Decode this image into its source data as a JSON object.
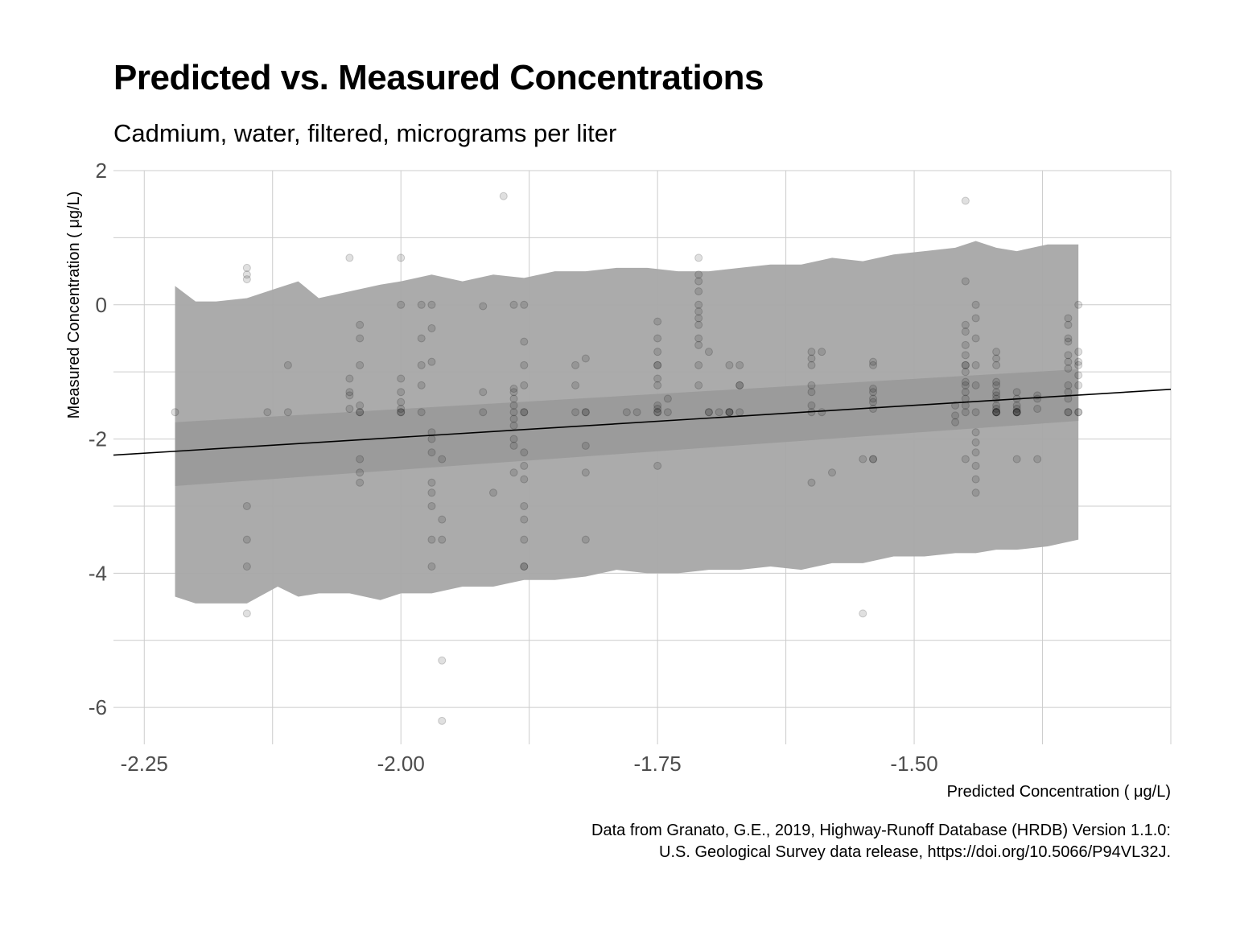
{
  "chart_data": {
    "type": "scatter",
    "title": "Predicted vs. Measured Concentrations",
    "subtitle": "Cadmium, water, filtered, micrograms per liter",
    "xlabel": "Predicted Concentration ( μg/L)",
    "ylabel": "Measured Concentration ( μg/L)",
    "caption": [
      "Data from Granato, G.E., 2019, Highway-Runoff Database (HRDB) Version 1.1.0:",
      "U.S. Geological Survey data release, https://doi.org/10.5066/P94VL32J."
    ],
    "xlim": [
      -2.28,
      -1.25
    ],
    "ylim": [
      -6.55,
      2.0
    ],
    "x_ticks": [
      -2.25,
      -2.0,
      -1.75,
      -1.5
    ],
    "x_tick_labels": [
      "-2.25",
      "-2.00",
      "-1.75",
      "-1.50"
    ],
    "y_ticks": [
      -6,
      -4,
      -2,
      0,
      2
    ],
    "y_tick_labels": [
      "-6",
      "-4",
      "-2",
      "0",
      "2"
    ],
    "grid": true,
    "colors": {
      "points": "#000000",
      "interval_band": "#a6a6a6",
      "confidence_band": "#999999",
      "fit_line": "#000000",
      "grid": "#cccccc"
    },
    "fit_line": {
      "x": [
        -2.28,
        -1.25
      ],
      "y": [
        -2.24,
        -1.26
      ]
    },
    "confidence_band": {
      "x": [
        -2.22,
        -1.34
      ],
      "lower": [
        -2.7,
        -1.73
      ],
      "upper": [
        -1.75,
        -0.96
      ]
    },
    "prediction_band": {
      "x": [
        -2.22,
        -2.2,
        -2.18,
        -2.15,
        -2.12,
        -2.1,
        -2.08,
        -2.05,
        -2.02,
        -2.0,
        -1.97,
        -1.94,
        -1.91,
        -1.88,
        -1.85,
        -1.82,
        -1.79,
        -1.76,
        -1.73,
        -1.7,
        -1.67,
        -1.64,
        -1.61,
        -1.58,
        -1.55,
        -1.52,
        -1.49,
        -1.46,
        -1.44,
        -1.42,
        -1.4,
        -1.37,
        -1.34
      ],
      "upper": [
        0.28,
        0.05,
        0.05,
        0.1,
        0.25,
        0.35,
        0.1,
        0.2,
        0.3,
        0.35,
        0.45,
        0.35,
        0.45,
        0.4,
        0.5,
        0.5,
        0.55,
        0.55,
        0.5,
        0.5,
        0.55,
        0.6,
        0.6,
        0.7,
        0.65,
        0.75,
        0.8,
        0.85,
        0.95,
        0.85,
        0.8,
        0.9,
        0.9
      ],
      "lower": [
        -4.35,
        -4.45,
        -4.45,
        -4.45,
        -4.2,
        -4.35,
        -4.3,
        -4.3,
        -4.4,
        -4.3,
        -4.3,
        -4.2,
        -4.2,
        -4.1,
        -4.1,
        -4.05,
        -3.95,
        -4.0,
        -4.0,
        -3.95,
        -3.95,
        -3.9,
        -3.95,
        -3.85,
        -3.85,
        -3.75,
        -3.75,
        -3.7,
        -3.7,
        -3.65,
        -3.65,
        -3.6,
        -3.5
      ]
    },
    "x": [
      -2.22,
      -2.15,
      -2.15,
      -2.15,
      -2.15,
      -2.15,
      -2.15,
      -2.15,
      -2.13,
      -2.11,
      -2.11,
      -2.05,
      -2.05,
      -2.05,
      -2.05,
      -2.05,
      -2.04,
      -2.04,
      -2.04,
      -2.04,
      -2.04,
      -2.04,
      -2.04,
      -2.04,
      -2.04,
      -2.0,
      -2.0,
      -2.0,
      -2.0,
      -2.0,
      -2.0,
      -2.0,
      -2.0,
      -1.98,
      -1.98,
      -1.98,
      -1.98,
      -1.98,
      -1.97,
      -1.97,
      -1.97,
      -1.97,
      -1.97,
      -1.97,
      -1.97,
      -1.97,
      -1.97,
      -1.97,
      -1.97,
      -1.96,
      -1.96,
      -1.96,
      -1.96,
      -1.96,
      -1.92,
      -1.92,
      -1.92,
      -1.91,
      -1.9,
      -1.89,
      -1.89,
      -1.89,
      -1.89,
      -1.89,
      -1.89,
      -1.89,
      -1.89,
      -1.89,
      -1.89,
      -1.89,
      -1.88,
      -1.88,
      -1.88,
      -1.88,
      -1.88,
      -1.88,
      -1.88,
      -1.88,
      -1.88,
      -1.88,
      -1.88,
      -1.88,
      -1.88,
      -1.88,
      -1.83,
      -1.83,
      -1.83,
      -1.82,
      -1.82,
      -1.82,
      -1.82,
      -1.82,
      -1.82,
      -1.78,
      -1.77,
      -1.75,
      -1.75,
      -1.75,
      -1.75,
      -1.75,
      -1.75,
      -1.75,
      -1.75,
      -1.75,
      -1.75,
      -1.75,
      -1.75,
      -1.74,
      -1.74,
      -1.71,
      -1.71,
      -1.71,
      -1.71,
      -1.71,
      -1.71,
      -1.71,
      -1.71,
      -1.71,
      -1.71,
      -1.71,
      -1.71,
      -1.7,
      -1.7,
      -1.7,
      -1.69,
      -1.68,
      -1.68,
      -1.68,
      -1.68,
      -1.67,
      -1.67,
      -1.67,
      -1.67,
      -1.6,
      -1.6,
      -1.6,
      -1.6,
      -1.6,
      -1.6,
      -1.6,
      -1.6,
      -1.59,
      -1.59,
      -1.58,
      -1.55,
      -1.55,
      -1.54,
      -1.54,
      -1.54,
      -1.54,
      -1.54,
      -1.54,
      -1.54,
      -1.54,
      -1.54,
      -1.46,
      -1.46,
      -1.46,
      -1.45,
      -1.45,
      -1.45,
      -1.45,
      -1.45,
      -1.45,
      -1.45,
      -1.45,
      -1.45,
      -1.45,
      -1.45,
      -1.45,
      -1.45,
      -1.45,
      -1.45,
      -1.45,
      -1.44,
      -1.44,
      -1.44,
      -1.44,
      -1.44,
      -1.44,
      -1.44,
      -1.44,
      -1.44,
      -1.44,
      -1.44,
      -1.44,
      -1.42,
      -1.42,
      -1.42,
      -1.42,
      -1.42,
      -1.42,
      -1.42,
      -1.42,
      -1.42,
      -1.42,
      -1.42,
      -1.42,
      -1.42,
      -1.42,
      -1.4,
      -1.4,
      -1.4,
      -1.4,
      -1.4,
      -1.4,
      -1.4,
      -1.4,
      -1.4,
      -1.38,
      -1.38,
      -1.38,
      -1.38,
      -1.35,
      -1.35,
      -1.35,
      -1.35,
      -1.35,
      -1.35,
      -1.35,
      -1.35,
      -1.35,
      -1.35,
      -1.35,
      -1.35,
      -1.34,
      -1.34,
      -1.34,
      -1.34,
      -1.34,
      -1.34,
      -1.34,
      -1.34
    ],
    "y": [
      -1.6,
      0.55,
      0.45,
      0.38,
      -3.0,
      -3.5,
      -3.9,
      -4.6,
      -1.6,
      -0.9,
      -1.6,
      0.7,
      -1.1,
      -1.3,
      -1.35,
      -1.55,
      -0.3,
      -0.5,
      -0.9,
      -1.5,
      -1.6,
      -1.6,
      -2.3,
      -2.5,
      -2.65,
      0.7,
      0.0,
      -1.1,
      -1.3,
      -1.45,
      -1.55,
      -1.6,
      -1.6,
      0.0,
      -0.5,
      -0.9,
      -1.2,
      -1.6,
      0.0,
      -0.35,
      -0.85,
      -1.9,
      -2.0,
      -2.2,
      -2.65,
      -2.8,
      -3.0,
      -3.5,
      -3.9,
      -3.2,
      -3.5,
      -2.3,
      -5.3,
      -6.2,
      -0.02,
      -1.3,
      -1.6,
      -2.8,
      1.62,
      0.0,
      -1.25,
      -1.3,
      -1.4,
      -1.5,
      -1.6,
      -1.7,
      -1.8,
      -2.0,
      -2.1,
      -2.5,
      0.0,
      -0.55,
      -0.9,
      -1.2,
      -1.6,
      -1.6,
      -2.2,
      -2.4,
      -2.6,
      -3.0,
      -3.2,
      -3.5,
      -3.9,
      -3.9,
      -0.9,
      -1.2,
      -1.6,
      -0.8,
      -1.6,
      -1.6,
      -2.1,
      -2.5,
      -3.5,
      -1.6,
      -1.6,
      -0.25,
      -0.5,
      -0.7,
      -0.9,
      -1.1,
      -1.2,
      -1.5,
      -1.55,
      -1.6,
      -1.6,
      -2.4,
      -0.9,
      -1.4,
      -1.6,
      0.7,
      0.45,
      0.35,
      0.2,
      0.0,
      -0.1,
      -0.2,
      -0.3,
      -0.5,
      -0.6,
      -0.9,
      -1.2,
      -0.7,
      -1.6,
      -1.6,
      -1.6,
      -0.9,
      -1.6,
      -1.6,
      -1.6,
      -1.2,
      -1.6,
      -1.2,
      -0.9,
      -0.7,
      -0.8,
      -0.9,
      -1.2,
      -1.3,
      -1.5,
      -1.6,
      -2.65,
      -0.7,
      -1.6,
      -2.5,
      -2.3,
      -4.6,
      -0.85,
      -0.9,
      -1.25,
      -1.3,
      -1.4,
      -1.45,
      -1.55,
      -2.3,
      -2.3,
      -1.75,
      -1.65,
      -1.5,
      1.55,
      0.35,
      -0.3,
      -0.4,
      -0.6,
      -0.75,
      -0.9,
      -1.0,
      -1.15,
      -1.2,
      -1.3,
      -1.4,
      -1.5,
      -1.6,
      -2.3,
      -0.9,
      0.0,
      -0.2,
      -0.5,
      -0.9,
      -1.2,
      -1.6,
      -1.9,
      -2.05,
      -2.2,
      -2.4,
      -2.6,
      -2.8,
      -0.7,
      -0.8,
      -0.9,
      -1.15,
      -1.2,
      -1.3,
      -1.35,
      -1.4,
      -1.5,
      -1.55,
      -1.6,
      -1.6,
      -1.6,
      -1.6,
      -1.3,
      -1.4,
      -1.5,
      -1.55,
      -1.6,
      -1.6,
      -2.3,
      -1.6,
      -1.6,
      -1.35,
      -1.4,
      -1.55,
      -2.3,
      -0.2,
      -0.3,
      -0.5,
      -0.55,
      -0.75,
      -0.85,
      -0.95,
      -1.2,
      -1.3,
      -1.4,
      -1.6,
      -1.6,
      0.0,
      -0.7,
      -0.85,
      -0.9,
      -1.05,
      -1.2,
      -1.6,
      -1.6
    ]
  }
}
